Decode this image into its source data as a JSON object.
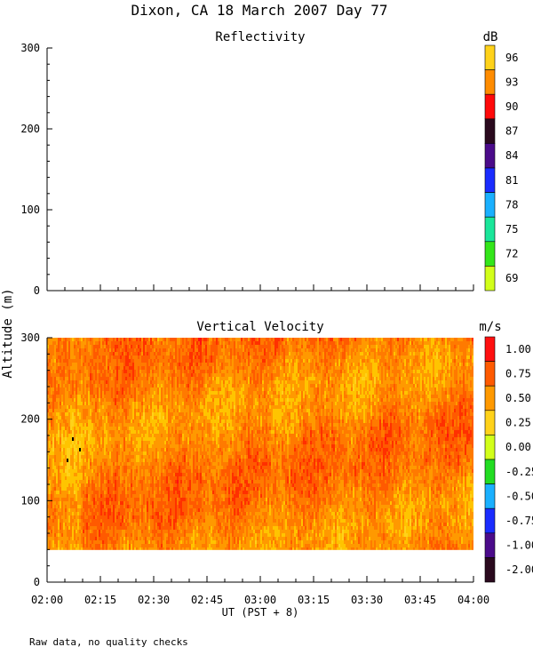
{
  "title": "Dixon, CA 18 March 2007  Day  77",
  "footer_note": "Raw data, no quality checks",
  "chart_data": [
    {
      "type": "heatmap",
      "title": "Reflectivity",
      "ylabel": "Altitude (m)",
      "ylim": [
        0,
        300
      ],
      "yticks": [
        0,
        100,
        200,
        300
      ],
      "xlim": [
        "02:00",
        "04:00"
      ],
      "data_visible": false,
      "colorbar": {
        "unit": "dB",
        "labels": [
          "96",
          "93",
          "90",
          "87",
          "84",
          "81",
          "78",
          "75",
          "72",
          "69"
        ],
        "colors": [
          "#ffd21a",
          "#ff8c00",
          "#ff0a0a",
          "#2a0a1e",
          "#4b0b8a",
          "#1a2cff",
          "#1ab0ff",
          "#1ae69a",
          "#33e61a",
          "#d2ff1a"
        ]
      }
    },
    {
      "type": "heatmap",
      "title": "Vertical Velocity",
      "xlabel": "UT  (PST + 8)",
      "ylabel": "Altitude (m)",
      "ylim": [
        0,
        300
      ],
      "yticks": [
        0,
        100,
        200,
        300
      ],
      "xlim": [
        "02:00",
        "04:00"
      ],
      "xticks": [
        "02:00",
        "02:15",
        "02:30",
        "02:45",
        "03:00",
        "03:15",
        "03:30",
        "03:45",
        "04:00"
      ],
      "data_altitude_range": [
        40,
        300
      ],
      "value_range": [
        0.25,
        1.25
      ],
      "colorbar": {
        "unit": "m/s",
        "labels": [
          "1.00",
          "0.75",
          "0.50",
          "0.25",
          "0.00",
          "-0.25",
          "-0.50",
          "-0.75",
          "-1.00",
          "-2.00"
        ],
        "colors": [
          "#ff1010",
          "#ff5a00",
          "#ff9900",
          "#ffd21a",
          "#d2ff1a",
          "#22dd22",
          "#1ab0ff",
          "#1a2cff",
          "#4b0b8a",
          "#2a0a1e"
        ]
      }
    }
  ]
}
